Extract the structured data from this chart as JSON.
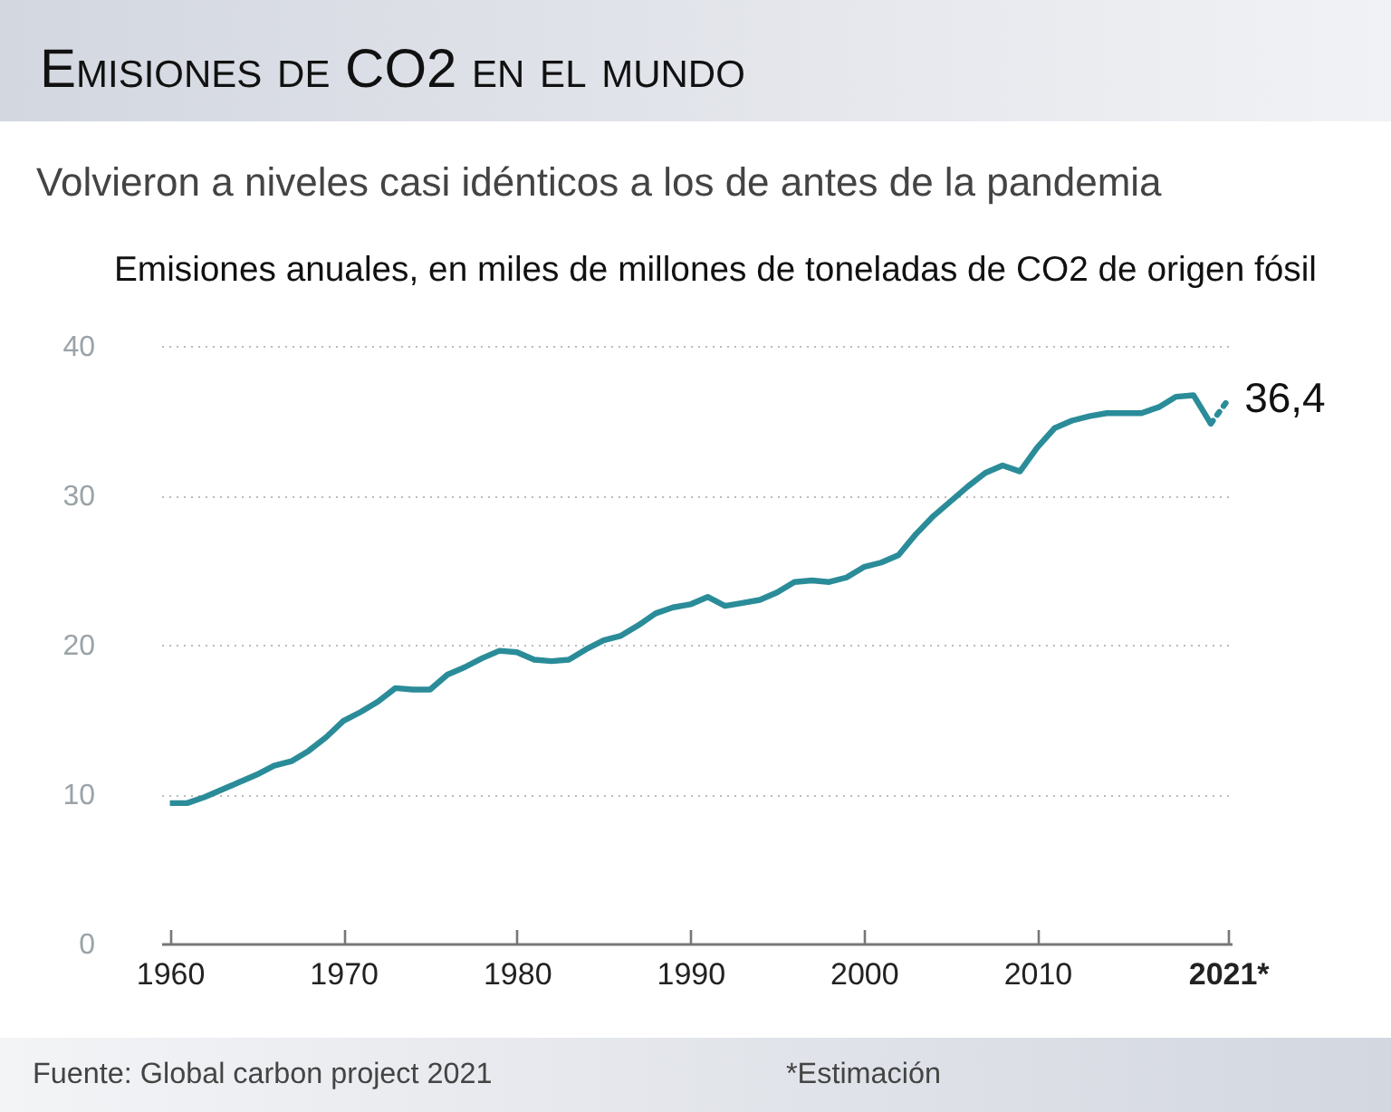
{
  "chart_data": {
    "type": "line",
    "title": "Emisiones de CO2 en el mundo",
    "subtitle": "Volvieron a niveles casi idénticos a los de antes de la pandemia",
    "ylabel": "Emisiones anuales, en miles de millones de toneladas de CO2 de origen fósil",
    "annotations": [
      "Fuente: Global carbon project 2021",
      "*Estimación"
    ],
    "x": [
      1960,
      1961,
      1962,
      1963,
      1964,
      1965,
      1966,
      1967,
      1968,
      1969,
      1970,
      1971,
      1972,
      1973,
      1974,
      1975,
      1976,
      1977,
      1978,
      1979,
      1980,
      1981,
      1982,
      1983,
      1984,
      1985,
      1986,
      1987,
      1988,
      1989,
      1990,
      1991,
      1992,
      1993,
      1994,
      1995,
      1996,
      1997,
      1998,
      1999,
      2000,
      2001,
      2002,
      2003,
      2004,
      2005,
      2006,
      2007,
      2008,
      2009,
      2010,
      2011,
      2012,
      2013,
      2014,
      2015,
      2016,
      2017,
      2018,
      2019,
      2020
    ],
    "series": [
      {
        "color": "#2b8c99",
        "line_style": "solid",
        "values": [
          9.4,
          9.4,
          9.8,
          10.3,
          10.8,
          11.3,
          11.9,
          12.2,
          12.9,
          13.8,
          14.9,
          15.5,
          16.2,
          17.1,
          17.0,
          17.0,
          18.0,
          18.5,
          19.1,
          19.6,
          19.5,
          19.0,
          18.9,
          19.0,
          19.7,
          20.3,
          20.6,
          21.3,
          22.1,
          22.5,
          22.7,
          23.2,
          22.6,
          22.8,
          23.0,
          23.5,
          24.2,
          24.3,
          24.2,
          24.5,
          25.2,
          25.5,
          26.0,
          27.4,
          28.6,
          29.6,
          30.6,
          31.5,
          32.0,
          31.6,
          33.2,
          34.5,
          35.0,
          35.3,
          35.5,
          35.5,
          35.5,
          35.9,
          36.6,
          36.7,
          34.8
        ]
      },
      {
        "color": "#2b8c99",
        "line_style": "dotted",
        "x": [
          2020,
          2021
        ],
        "values": [
          34.8,
          36.4
        ],
        "value_labels": [
          null,
          "36,4"
        ]
      }
    ],
    "xlim": [
      1959.5,
      2021.2
    ],
    "xticks": [
      1960,
      1970,
      1980,
      1990,
      2000,
      2010,
      {
        "value": 2021,
        "label": "2021*"
      }
    ],
    "ylim": [
      0,
      40
    ],
    "yticks": [
      0,
      10,
      20,
      30,
      40
    ],
    "grid": "y"
  }
}
